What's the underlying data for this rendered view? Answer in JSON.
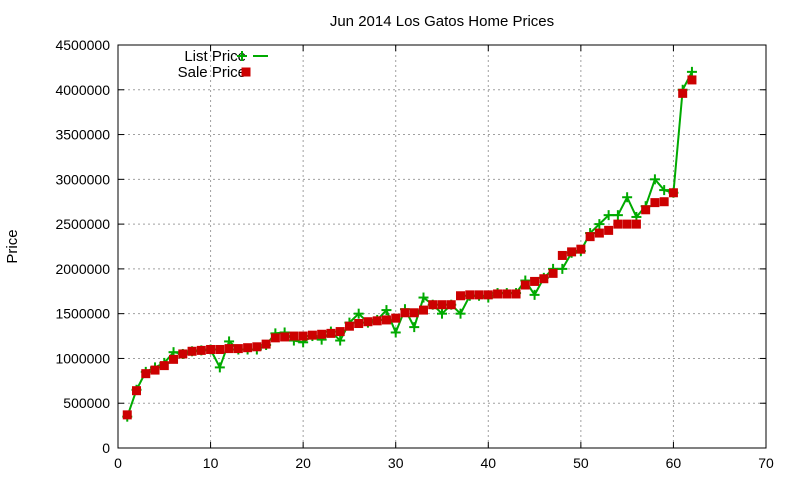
{
  "chart_data": {
    "type": "line",
    "title": "Jun 2014 Los Gatos Home Prices",
    "xlabel": "",
    "ylabel": "Price",
    "xlim": [
      0,
      70
    ],
    "ylim": [
      0,
      4500000
    ],
    "xticks": [
      0,
      10,
      20,
      30,
      40,
      50,
      60,
      70
    ],
    "yticks": [
      0,
      500000,
      1000000,
      1500000,
      2000000,
      2500000,
      3000000,
      3500000,
      4000000,
      4500000
    ],
    "grid": true,
    "legend_position": "top-left",
    "series": [
      {
        "name": "List Price",
        "style": "line+plus",
        "color": "#00aa00",
        "x": [
          1,
          2,
          3,
          4,
          5,
          6,
          7,
          8,
          9,
          10,
          11,
          12,
          13,
          14,
          15,
          16,
          17,
          18,
          19,
          20,
          21,
          22,
          23,
          24,
          25,
          26,
          27,
          28,
          29,
          30,
          31,
          32,
          33,
          34,
          35,
          36,
          37,
          38,
          39,
          40,
          41,
          42,
          43,
          44,
          45,
          46,
          47,
          48,
          49,
          50,
          51,
          52,
          53,
          54,
          55,
          56,
          57,
          58,
          59,
          60,
          61,
          62
        ],
        "values": [
          350000,
          650000,
          850000,
          900000,
          950000,
          1070000,
          1050000,
          1080000,
          1090000,
          1100000,
          900000,
          1190000,
          1100000,
          1100000,
          1100000,
          1150000,
          1280000,
          1290000,
          1200000,
          1180000,
          1250000,
          1210000,
          1300000,
          1200000,
          1400000,
          1500000,
          1400000,
          1430000,
          1540000,
          1290000,
          1550000,
          1350000,
          1680000,
          1600000,
          1500000,
          1600000,
          1500000,
          1700000,
          1700000,
          1680000,
          1730000,
          1730000,
          1730000,
          1870000,
          1710000,
          1900000,
          2000000,
          2000000,
          2180000,
          2200000,
          2400000,
          2500000,
          2600000,
          2600000,
          2800000,
          2580000,
          2700000,
          3000000,
          2880000,
          2850000,
          4000000,
          4200000
        ]
      },
      {
        "name": "Sale Price",
        "style": "square-markers",
        "color": "#cc0000",
        "x": [
          1,
          2,
          3,
          4,
          5,
          6,
          7,
          8,
          9,
          10,
          11,
          12,
          13,
          14,
          15,
          16,
          17,
          18,
          19,
          20,
          21,
          22,
          23,
          24,
          25,
          26,
          27,
          28,
          29,
          30,
          31,
          32,
          33,
          34,
          35,
          36,
          37,
          38,
          39,
          40,
          41,
          42,
          43,
          44,
          45,
          46,
          47,
          48,
          49,
          50,
          51,
          52,
          53,
          54,
          55,
          56,
          57,
          58,
          59,
          60,
          61,
          62
        ],
        "values": [
          370000,
          640000,
          830000,
          870000,
          920000,
          990000,
          1050000,
          1080000,
          1090000,
          1100000,
          1100000,
          1110000,
          1110000,
          1120000,
          1130000,
          1160000,
          1230000,
          1240000,
          1250000,
          1250000,
          1260000,
          1270000,
          1280000,
          1300000,
          1360000,
          1390000,
          1410000,
          1420000,
          1430000,
          1450000,
          1510000,
          1510000,
          1540000,
          1600000,
          1600000,
          1600000,
          1700000,
          1710000,
          1710000,
          1710000,
          1720000,
          1720000,
          1720000,
          1820000,
          1860000,
          1890000,
          1950000,
          2150000,
          2190000,
          2220000,
          2360000,
          2400000,
          2430000,
          2500000,
          2500000,
          2500000,
          2660000,
          2740000,
          2750000,
          2850000,
          3960000,
          4110000
        ]
      }
    ]
  }
}
